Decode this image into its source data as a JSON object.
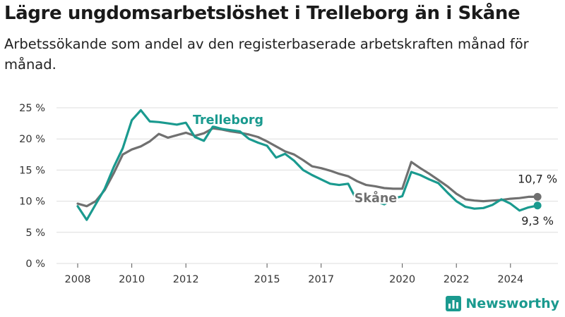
{
  "title": "Lägre ungdomsarbetslöshet i Trelleborg än i Skåne",
  "subtitle": "Arbetssökande som andel av den registerbaserade arbetskraften månad för månad.",
  "brand": {
    "name": "Newsworthy",
    "icon": "newsworthy-logo-icon",
    "color": "#1a9a8f"
  },
  "chart_data": {
    "type": "line",
    "x_ticks": [
      "2008",
      "2010",
      "2012",
      "2015",
      "2017",
      "2020",
      "2022",
      "2024"
    ],
    "y_ticks": [
      "0 %",
      "5 %",
      "10 %",
      "15 %",
      "20 %",
      "25 %"
    ],
    "ylim": [
      0,
      25
    ],
    "grid": true,
    "series": [
      {
        "name": "Skåne",
        "color": "#707070",
        "end_label": "10,7 %",
        "points": [
          [
            "2008-01",
            9.6
          ],
          [
            "2008-05",
            9.2
          ],
          [
            "2008-09",
            10.0
          ],
          [
            "2009-01",
            11.8
          ],
          [
            "2009-05",
            14.5
          ],
          [
            "2009-09",
            17.5
          ],
          [
            "2010-01",
            18.3
          ],
          [
            "2010-05",
            18.8
          ],
          [
            "2010-09",
            19.6
          ],
          [
            "2011-01",
            20.8
          ],
          [
            "2011-05",
            20.2
          ],
          [
            "2011-09",
            20.6
          ],
          [
            "2012-01",
            21.0
          ],
          [
            "2012-05",
            20.5
          ],
          [
            "2012-09",
            20.9
          ],
          [
            "2013-01",
            21.7
          ],
          [
            "2013-05",
            21.5
          ],
          [
            "2013-09",
            21.2
          ],
          [
            "2014-01",
            21.0
          ],
          [
            "2014-05",
            20.7
          ],
          [
            "2014-09",
            20.3
          ],
          [
            "2015-01",
            19.6
          ],
          [
            "2015-05",
            18.8
          ],
          [
            "2015-09",
            18.0
          ],
          [
            "2016-01",
            17.5
          ],
          [
            "2016-05",
            16.6
          ],
          [
            "2016-09",
            15.6
          ],
          [
            "2017-01",
            15.3
          ],
          [
            "2017-05",
            14.9
          ],
          [
            "2017-09",
            14.4
          ],
          [
            "2018-01",
            14.0
          ],
          [
            "2018-05",
            13.2
          ],
          [
            "2018-09",
            12.6
          ],
          [
            "2019-01",
            12.4
          ],
          [
            "2019-05",
            12.1
          ],
          [
            "2019-09",
            12.0
          ],
          [
            "2020-01",
            12.0
          ],
          [
            "2020-05",
            16.3
          ],
          [
            "2020-09",
            15.3
          ],
          [
            "2021-01",
            14.4
          ],
          [
            "2021-05",
            13.4
          ],
          [
            "2021-09",
            12.4
          ],
          [
            "2022-01",
            11.2
          ],
          [
            "2022-05",
            10.3
          ],
          [
            "2022-09",
            10.1
          ],
          [
            "2023-01",
            10.0
          ],
          [
            "2023-05",
            10.1
          ],
          [
            "2023-09",
            10.2
          ],
          [
            "2024-01",
            10.4
          ],
          [
            "2024-05",
            10.5
          ],
          [
            "2024-09",
            10.7
          ],
          [
            "2025-01",
            10.7
          ]
        ]
      },
      {
        "name": "Trelleborg",
        "color": "#1a9a8f",
        "end_label": "9,3 %",
        "points": [
          [
            "2008-01",
            9.2
          ],
          [
            "2008-05",
            7.0
          ],
          [
            "2008-09",
            9.5
          ],
          [
            "2009-01",
            12.0
          ],
          [
            "2009-05",
            15.5
          ],
          [
            "2009-09",
            18.5
          ],
          [
            "2010-01",
            23.0
          ],
          [
            "2010-05",
            24.6
          ],
          [
            "2010-09",
            22.8
          ],
          [
            "2011-01",
            22.7
          ],
          [
            "2011-05",
            22.5
          ],
          [
            "2011-09",
            22.3
          ],
          [
            "2012-01",
            22.6
          ],
          [
            "2012-05",
            20.3
          ],
          [
            "2012-09",
            19.7
          ],
          [
            "2013-01",
            22.0
          ],
          [
            "2013-05",
            21.6
          ],
          [
            "2013-09",
            21.4
          ],
          [
            "2014-01",
            21.2
          ],
          [
            "2014-05",
            20.0
          ],
          [
            "2014-09",
            19.4
          ],
          [
            "2015-01",
            18.9
          ],
          [
            "2015-05",
            17.0
          ],
          [
            "2015-09",
            17.6
          ],
          [
            "2016-01",
            16.5
          ],
          [
            "2016-05",
            15.0
          ],
          [
            "2016-09",
            14.2
          ],
          [
            "2017-01",
            13.5
          ],
          [
            "2017-05",
            12.8
          ],
          [
            "2017-09",
            12.6
          ],
          [
            "2018-01",
            12.8
          ],
          [
            "2018-05",
            10.0
          ],
          [
            "2018-09",
            10.4
          ],
          [
            "2019-01",
            10.0
          ],
          [
            "2019-05",
            9.5
          ],
          [
            "2019-09",
            10.4
          ],
          [
            "2020-01",
            10.8
          ],
          [
            "2020-05",
            14.7
          ],
          [
            "2020-09",
            14.2
          ],
          [
            "2021-01",
            13.5
          ],
          [
            "2021-05",
            12.9
          ],
          [
            "2021-09",
            11.4
          ],
          [
            "2022-01",
            10.0
          ],
          [
            "2022-05",
            9.1
          ],
          [
            "2022-09",
            8.8
          ],
          [
            "2023-01",
            8.9
          ],
          [
            "2023-05",
            9.4
          ],
          [
            "2023-09",
            10.3
          ],
          [
            "2024-01",
            9.6
          ],
          [
            "2024-05",
            8.5
          ],
          [
            "2024-09",
            9.0
          ],
          [
            "2025-01",
            9.3
          ]
        ]
      }
    ],
    "annotations": [
      {
        "text": "Trelleborg",
        "series": "Trelleborg"
      },
      {
        "text": "Skåne",
        "series": "Skåne"
      }
    ]
  }
}
